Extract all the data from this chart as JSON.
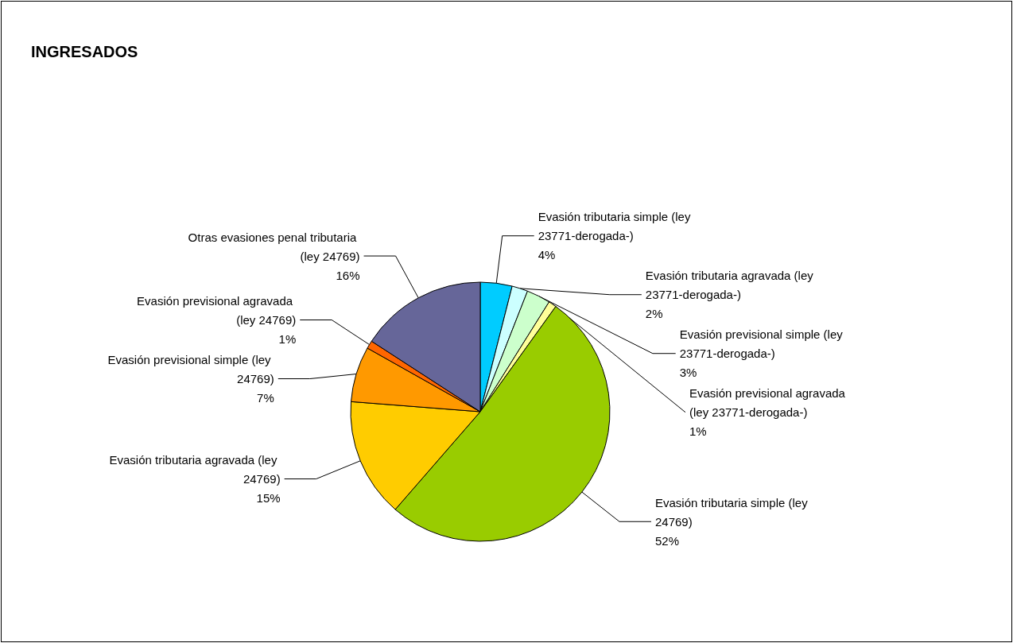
{
  "chart_data": {
    "type": "pie",
    "title": "INGRESADOS",
    "categories": [
      "Evasión tributaria simple (ley 23771-derogada-)",
      "Evasión tributaria agravada (ley 23771-derogada-)",
      "Evasión previsional simple (ley 23771-derogada-)",
      "Evasión previsional agravada (ley 23771-derogada-)",
      "Evasión tributaria simple (ley 24769)",
      "Evasión tributaria agravada (ley 24769)",
      "Evasión previsional simple (ley 24769)",
      "Evasión previsional agravada (ley 24769)",
      "Otras evasiones penal tributaria (ley 24769)"
    ],
    "values": [
      4,
      2,
      3,
      1,
      52,
      15,
      7,
      1,
      16
    ],
    "value_labels": [
      "4%",
      "2%",
      "3%",
      "1%",
      "52%",
      "15%",
      "7%",
      "1%",
      "16%"
    ],
    "colors": [
      "#00ccff",
      "#ccffff",
      "#ccffcc",
      "#ffff99",
      "#99cc00",
      "#ffcc00",
      "#ff9900",
      "#ff6600",
      "#666699"
    ],
    "legend": false
  }
}
